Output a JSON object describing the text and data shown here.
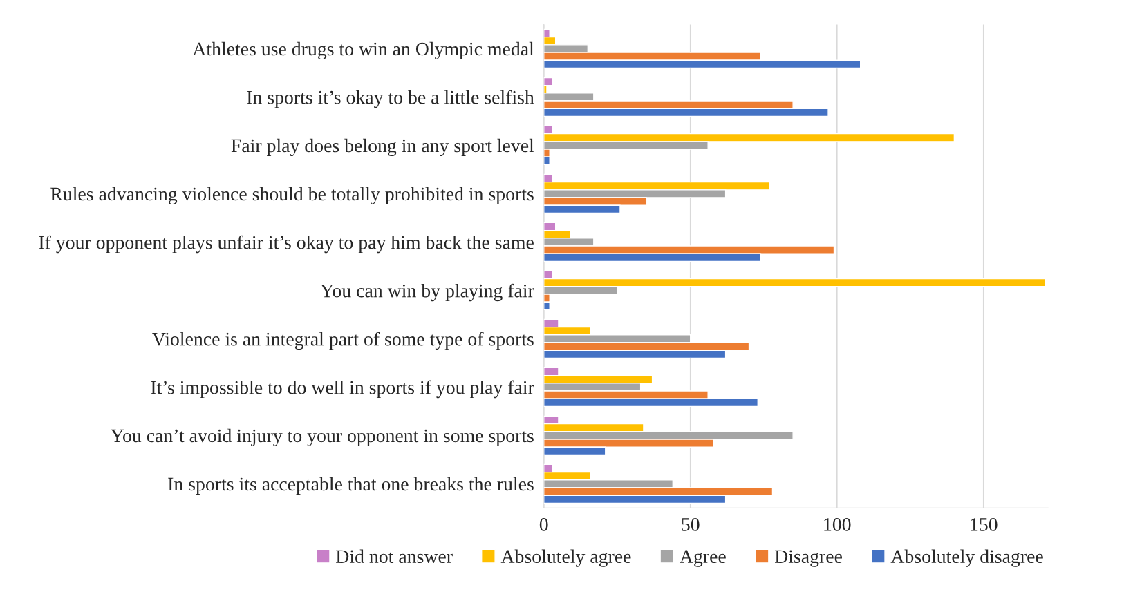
{
  "chart_data": {
    "type": "bar",
    "orientation": "horizontal",
    "categories": [
      "Athletes use drugs to win an Olympic medal",
      "In sports it’s okay to be a little selfish",
      "Fair play does belong in any sport level",
      "Rules advancing violence should be totally prohibited in sports",
      "If your opponent plays unfair it’s okay to pay him back the same",
      "You can win by playing fair",
      "Violence is an integral part of some type of sports",
      "It’s impossible to do well in sports if you play fair",
      "You can’t avoid injury to your opponent in some sports",
      "In sports its acceptable that one breaks the rules"
    ],
    "series": [
      {
        "name": "Did not answer",
        "color": "#c880c8",
        "values": [
          2,
          3,
          3,
          3,
          4,
          3,
          5,
          5,
          5,
          3
        ]
      },
      {
        "name": "Absolutely agree",
        "color": "#ffc000",
        "values": [
          4,
          1,
          140,
          77,
          9,
          171,
          16,
          37,
          34,
          16
        ]
      },
      {
        "name": "Agree",
        "color": "#a5a5a5",
        "values": [
          15,
          17,
          56,
          62,
          17,
          25,
          50,
          33,
          85,
          44
        ]
      },
      {
        "name": "Disagree",
        "color": "#ed7d31",
        "values": [
          74,
          85,
          2,
          35,
          99,
          2,
          70,
          56,
          58,
          78
        ]
      },
      {
        "name": "Absolutely disagree",
        "color": "#4472c4",
        "values": [
          108,
          97,
          2,
          26,
          74,
          2,
          62,
          73,
          21,
          62
        ]
      }
    ],
    "xlim": [
      0,
      172
    ],
    "xticks": [
      0,
      50,
      100,
      150
    ],
    "grid": "x",
    "legend": "bottom"
  }
}
